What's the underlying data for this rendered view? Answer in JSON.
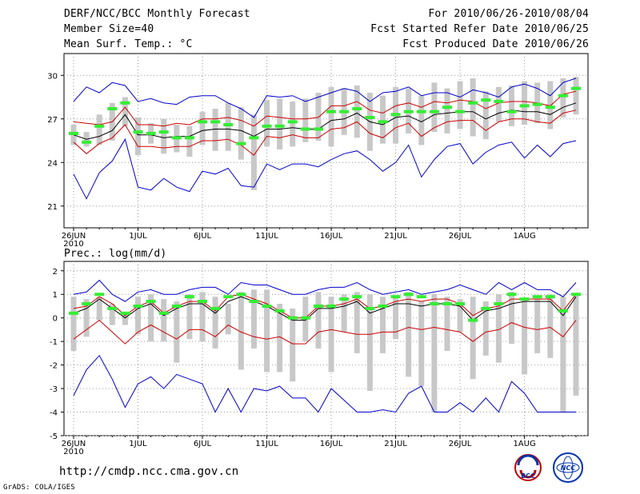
{
  "header": {
    "title": "DERF/NCC/BCC Monthly Forecast",
    "member_size": "Member Size=40",
    "variable1": "Mean Surf. Temp.: °C",
    "period": "For 2010/06/26-2010/08/04",
    "started": "Fcst Started Refer Date 2010/06/25",
    "produced": "Fcst Produced Date 2010/06/26"
  },
  "panel2_label": "Prec.: log(mm/d)",
  "footer": {
    "url": "http://cmdp.ncc.cma.gov.cn",
    "grads": "GrADS: COLA/IGES"
  },
  "logos": {
    "bcc": "BCC",
    "ncc": "NCC"
  },
  "colors": {
    "max_min": "#0000cc",
    "spread": "#cc0000",
    "mean": "#000000",
    "box": "#c8c8c8",
    "obs": "#33ee33"
  },
  "chart_data": [
    {
      "type": "line",
      "title": "Mean Surf. Temp.: °C",
      "ylim": [
        19.5,
        31.5
      ],
      "yticks": [
        21,
        24,
        27,
        30
      ],
      "xticks": [
        "26JUN\n2010",
        "1JUL",
        "6JUL",
        "11JUL",
        "16JUL",
        "21JUL",
        "26JUL",
        "1AUG"
      ],
      "x_days": 40,
      "series": [
        {
          "name": "max",
          "values": [
            28.2,
            29.2,
            28.8,
            29.5,
            29.3,
            28.2,
            28.4,
            28.1,
            28.0,
            28.5,
            28.6,
            28.6,
            28.1,
            27.7,
            27.1,
            28.6,
            28.5,
            28.6,
            28.2,
            28.5,
            28.8,
            29.1,
            28.9,
            28.2,
            28.8,
            28.9,
            29.2,
            28.6,
            28.8,
            28.8,
            28.5,
            29.0,
            28.8,
            28.5,
            29.2,
            29.4,
            29.1,
            28.6,
            29.5,
            29.8
          ]
        },
        {
          "name": "min",
          "values": [
            23.2,
            21.5,
            23.3,
            24.1,
            25.6,
            22.3,
            22.1,
            22.9,
            22.3,
            22.0,
            23.4,
            23.2,
            23.6,
            22.4,
            22.3,
            23.9,
            23.5,
            23.9,
            23.9,
            23.7,
            24.2,
            24.6,
            24.8,
            24.2,
            23.4,
            24.0,
            25.2,
            23.0,
            24.2,
            25.1,
            25.3,
            23.9,
            24.7,
            25.2,
            25.4,
            24.3,
            25.2,
            24.4,
            25.3,
            25.5
          ]
        },
        {
          "name": "upper",
          "values": [
            26.8,
            26.7,
            26.6,
            26.8,
            27.8,
            26.6,
            26.6,
            26.5,
            26.7,
            26.6,
            27.0,
            27.0,
            27.1,
            26.9,
            26.5,
            27.2,
            27.1,
            27.0,
            27.0,
            27.1,
            27.9,
            27.9,
            28.2,
            27.6,
            27.4,
            27.9,
            28.1,
            27.8,
            28.2,
            28.1,
            28.3,
            28.2,
            27.7,
            28.1,
            28.2,
            28.2,
            28.1,
            27.9,
            28.7,
            28.9
          ]
        },
        {
          "name": "mean",
          "values": [
            25.9,
            25.6,
            25.8,
            26.2,
            27.3,
            25.9,
            25.9,
            25.7,
            25.8,
            25.8,
            26.2,
            26.3,
            26.3,
            26.2,
            25.8,
            26.3,
            26.3,
            26.4,
            26.3,
            26.3,
            26.9,
            27.0,
            27.4,
            26.8,
            26.6,
            27.1,
            27.2,
            26.8,
            27.3,
            27.4,
            27.5,
            27.5,
            27.0,
            27.4,
            27.6,
            27.5,
            27.5,
            27.3,
            27.8,
            28.1
          ]
        },
        {
          "name": "lower",
          "values": [
            25.4,
            24.6,
            25.3,
            25.7,
            26.6,
            25.1,
            25.1,
            25.0,
            25.1,
            25.1,
            25.5,
            25.5,
            25.6,
            25.2,
            24.5,
            25.8,
            25.7,
            25.9,
            25.7,
            25.7,
            26.3,
            26.4,
            26.8,
            26.0,
            25.7,
            26.4,
            26.7,
            25.8,
            26.4,
            26.8,
            26.9,
            26.9,
            26.2,
            26.8,
            27.0,
            27.0,
            26.8,
            26.7,
            27.4,
            27.6
          ]
        },
        {
          "name": "obs",
          "values": [
            26.0,
            25.4,
            26.5,
            27.7,
            28.1,
            26.1,
            26.0,
            26.1,
            25.7,
            25.7,
            26.8,
            26.8,
            26.6,
            25.3,
            25.7,
            26.5,
            26.5,
            26.8,
            26.3,
            26.3,
            27.5,
            27.5,
            27.7,
            27.1,
            26.8,
            27.3,
            27.5,
            27.5,
            27.5,
            27.8,
            27.5,
            28.1,
            28.3,
            28.2,
            27.5,
            27.9,
            28.0,
            27.8,
            28.6,
            29.1
          ]
        },
        {
          "name": "box_top",
          "values": [
            26.6,
            26.1,
            27.3,
            28.1,
            28.5,
            27.1,
            26.7,
            27.0,
            26.6,
            26.5,
            27.5,
            27.7,
            28.1,
            27.8,
            27.3,
            28.3,
            28.4,
            28.2,
            28.4,
            28.8,
            29.2,
            29.1,
            29.3,
            28.8,
            28.6,
            29.2,
            29.1,
            28.6,
            29.5,
            29.1,
            29.6,
            29.8,
            28.9,
            29.2,
            29.3,
            29.6,
            29.5,
            29.6,
            29.8,
            29.9
          ]
        },
        {
          "name": "box_bottom",
          "values": [
            25.2,
            25.1,
            25.2,
            25.5,
            26.5,
            24.5,
            25.3,
            24.6,
            24.7,
            24.4,
            25.2,
            24.8,
            24.8,
            24.2,
            22.1,
            25.1,
            24.9,
            25.1,
            25.4,
            25.5,
            25.1,
            25.9,
            25.7,
            24.8,
            25.3,
            25.3,
            26.0,
            25.2,
            26.1,
            26.0,
            26.3,
            25.8,
            25.6,
            26.8,
            26.5,
            26.6,
            26.7,
            26.3,
            27.1,
            27.3
          ]
        }
      ]
    },
    {
      "type": "line",
      "title": "Prec.: log(mm/d)",
      "ylim": [
        -5,
        2.4
      ],
      "yticks": [
        -5,
        -4,
        -3,
        -2,
        -1,
        0,
        1,
        2
      ],
      "xticks": [
        "26JUN\n2010",
        "1JUL",
        "6JUL",
        "11JUL",
        "16JUL",
        "21JUL",
        "26JUL",
        "1AUG"
      ],
      "x_days": 40,
      "series": [
        {
          "name": "max",
          "values": [
            1.0,
            1.1,
            1.6,
            1.0,
            0.7,
            1.1,
            1.2,
            1.0,
            1.0,
            1.2,
            1.3,
            1.3,
            1.0,
            1.5,
            1.4,
            1.4,
            1.2,
            1.0,
            1.0,
            1.2,
            1.3,
            1.3,
            1.5,
            1.2,
            1.0,
            1.1,
            1.2,
            1.0,
            1.1,
            1.2,
            1.4,
            1.2,
            1.0,
            1.5,
            1.2,
            1.5,
            1.2,
            1.2,
            0.9,
            1.5
          ]
        },
        {
          "name": "min",
          "values": [
            -3.3,
            -2.2,
            -1.6,
            -2.6,
            -3.8,
            -2.8,
            -2.5,
            -3.0,
            -2.4,
            -2.6,
            -2.8,
            -4.0,
            -3.0,
            -4.0,
            -3.0,
            -3.1,
            -2.9,
            -3.4,
            -3.4,
            -4.0,
            -3.0,
            -3.5,
            -4.0,
            -4.0,
            -3.9,
            -4.0,
            -3.2,
            -2.9,
            -4.0,
            -4.0,
            -3.6,
            -4.0,
            -3.4,
            -4.0,
            -2.7,
            -3.2,
            -4.0,
            -4.0,
            -4.0,
            -4.0
          ]
        },
        {
          "name": "upper",
          "values": [
            0.4,
            0.5,
            0.9,
            0.6,
            0.1,
            0.5,
            0.7,
            0.2,
            0.5,
            0.7,
            0.7,
            0.3,
            0.9,
            1.0,
            0.8,
            0.6,
            0.3,
            0.0,
            0.0,
            0.5,
            0.5,
            0.6,
            0.8,
            0.4,
            0.5,
            0.7,
            0.8,
            0.7,
            0.8,
            0.8,
            0.6,
            0.1,
            0.4,
            0.5,
            0.8,
            0.8,
            0.8,
            0.8,
            0.3,
            1.0
          ]
        },
        {
          "name": "mean",
          "values": [
            0.2,
            0.4,
            0.8,
            0.4,
            0.0,
            0.4,
            0.6,
            0.1,
            0.4,
            0.6,
            0.6,
            0.2,
            0.7,
            0.9,
            0.7,
            0.5,
            0.2,
            -0.1,
            -0.1,
            0.4,
            0.4,
            0.5,
            0.7,
            0.2,
            0.4,
            0.6,
            0.6,
            0.5,
            0.6,
            0.6,
            0.5,
            -0.1,
            0.3,
            0.4,
            0.6,
            0.7,
            0.7,
            0.7,
            0.1,
            0.9
          ]
        },
        {
          "name": "lower",
          "values": [
            -0.9,
            -0.5,
            -0.1,
            -0.6,
            -1.1,
            -0.6,
            -0.3,
            -0.6,
            -0.9,
            -0.5,
            -0.5,
            -0.8,
            -0.3,
            -0.6,
            -0.8,
            -0.9,
            -0.8,
            -1.1,
            -1.1,
            -0.6,
            -0.5,
            -0.6,
            -0.7,
            -0.7,
            -0.6,
            -0.6,
            -0.4,
            -0.5,
            -0.4,
            -0.5,
            -0.6,
            -1.0,
            -0.6,
            -0.5,
            -0.2,
            -0.4,
            -0.5,
            -0.4,
            -0.8,
            -0.1
          ]
        },
        {
          "name": "obs",
          "values": [
            0.2,
            0.6,
            1.0,
            0.4,
            0.2,
            0.5,
            0.7,
            0.2,
            0.5,
            0.9,
            0.7,
            0.4,
            0.9,
            1.0,
            0.7,
            0.5,
            0.3,
            0.0,
            0.0,
            0.5,
            0.5,
            0.8,
            0.9,
            0.4,
            0.5,
            0.9,
            1.0,
            0.9,
            0.6,
            0.6,
            0.6,
            -0.1,
            0.4,
            0.6,
            1.0,
            0.8,
            0.9,
            0.9,
            0.3,
            1.0
          ]
        },
        {
          "name": "box_top",
          "values": [
            0.9,
            0.8,
            0.9,
            0.6,
            0.2,
            0.9,
            1.0,
            0.8,
            0.7,
            1.0,
            1.1,
            0.9,
            0.6,
            1.1,
            1.2,
            1.2,
            0.6,
            0.4,
            0.9,
            1.1,
            0.9,
            1.0,
            1.1,
            1.0,
            0.9,
            0.9,
            1.1,
            0.7,
            1.0,
            0.9,
            0.8,
            0.9,
            0.7,
            1.0,
            1.1,
            0.8,
            0.8,
            1.0,
            0.9,
            1.0
          ]
        },
        {
          "name": "box_bottom",
          "values": [
            -1.4,
            -0.8,
            -0.1,
            -0.3,
            -0.3,
            -0.7,
            -1.0,
            -1.0,
            -1.9,
            -0.9,
            -1.0,
            -1.3,
            -0.7,
            -2.2,
            -1.3,
            -2.3,
            -2.3,
            -2.7,
            -1.0,
            -1.3,
            -2.3,
            -0.6,
            -1.5,
            -3.1,
            -1.5,
            -0.9,
            -2.5,
            -2.9,
            -4.0,
            -1.4,
            -0.6,
            -2.6,
            -1.6,
            -1.9,
            -1.1,
            -2.4,
            -1.5,
            -1.7,
            -4.0,
            -3.3
          ]
        }
      ]
    }
  ]
}
